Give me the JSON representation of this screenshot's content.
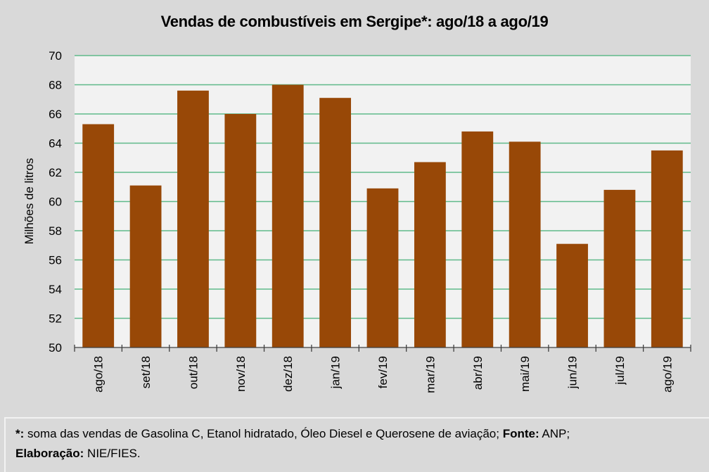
{
  "chart_data": {
    "type": "bar",
    "title": "Vendas de combustíveis em Sergipe*: ago/18 a ago/19",
    "xlabel": "",
    "ylabel": "Milhões de litros",
    "ylim": [
      50,
      70
    ],
    "yticks": [
      50,
      52,
      54,
      56,
      58,
      60,
      62,
      64,
      66,
      68,
      70
    ],
    "grid": true,
    "categories": [
      "ago/18",
      "set/18",
      "out/18",
      "nov/18",
      "dez/18",
      "jan/19",
      "fev/19",
      "mar/19",
      "abr/19",
      "mai/19",
      "jun/19",
      "jul/19",
      "ago/19"
    ],
    "values": [
      65.3,
      61.1,
      67.6,
      66.0,
      68.0,
      67.1,
      60.9,
      62.7,
      64.8,
      64.1,
      57.1,
      60.8,
      63.5
    ],
    "colors": {
      "bar": "#984807",
      "grid": "#5fb98a",
      "plot_bg": "#f2f2f2",
      "page_bg": "#d9d9d9"
    }
  },
  "footer": {
    "line1_mark": "*:",
    "line1_text": " soma das vendas de Gasolina C, Etanol hidratado, Óleo Diesel e Querosene de aviação;",
    "line1_source_label": " Fonte:",
    "line1_source_value": " ANP;",
    "line2_label": "Elaboração:",
    "line2_value": " NIE/FIES."
  }
}
